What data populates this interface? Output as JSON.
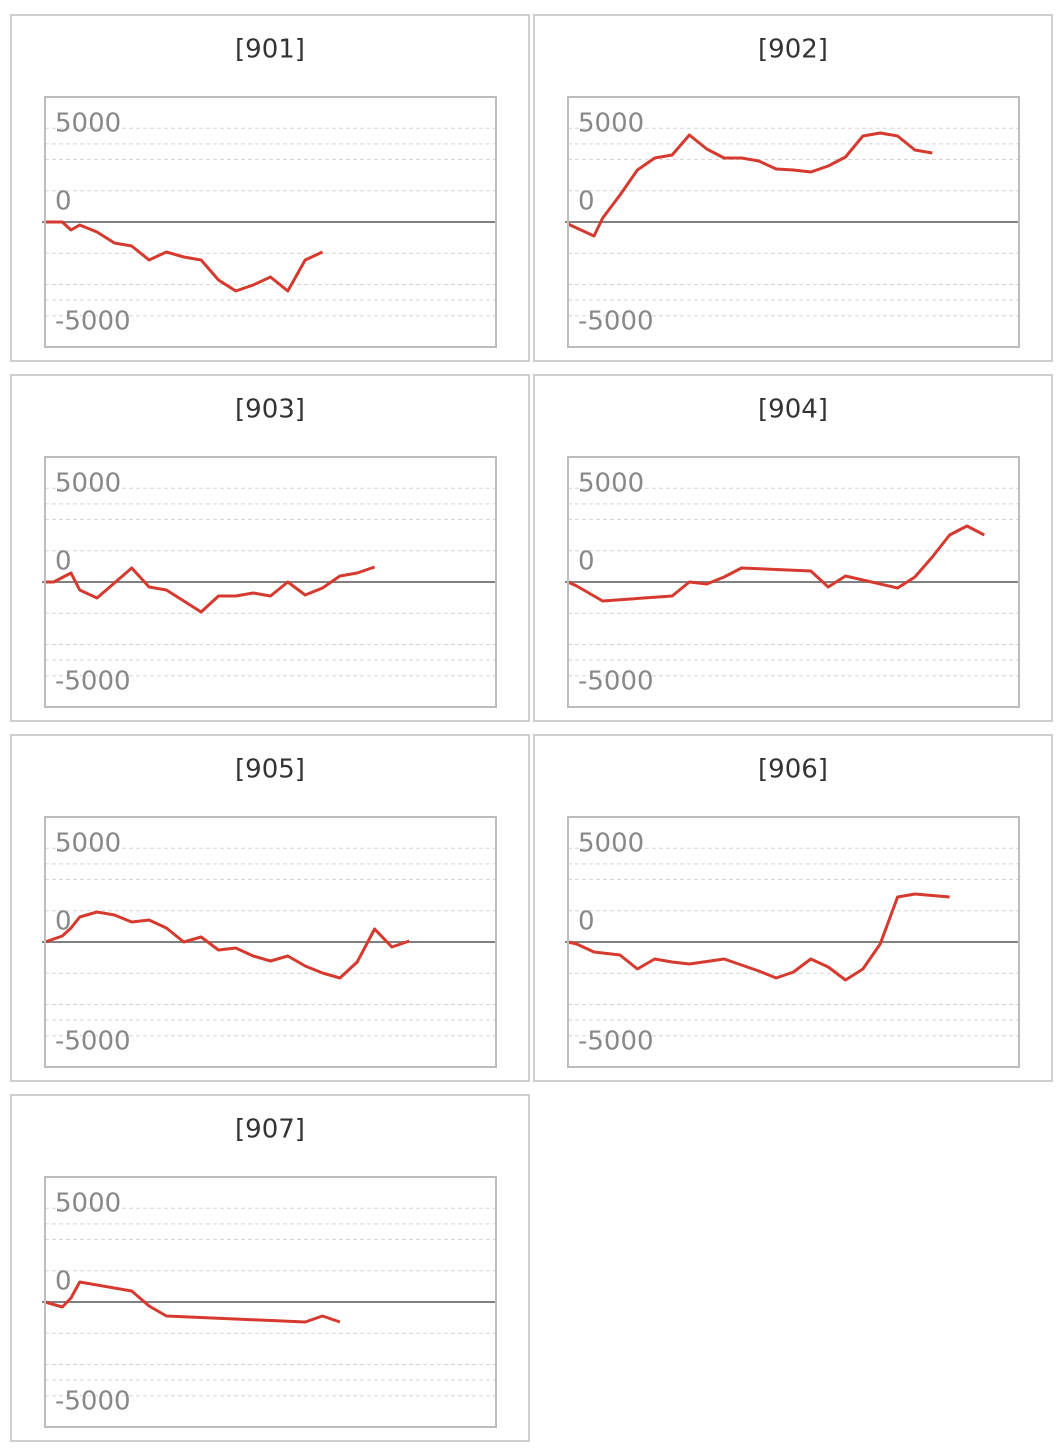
{
  "chart_data": [
    {
      "type": "line",
      "title": "[901]",
      "color": "#d63a2f",
      "ylim": [
        -8000,
        8000
      ],
      "yticks": [
        5000,
        0,
        -5000
      ],
      "xlim": [
        0,
        26
      ],
      "x": [
        0,
        1,
        1.5,
        2,
        3,
        4,
        5,
        6,
        7,
        8,
        9,
        10,
        11,
        12,
        13,
        14,
        15,
        16
      ],
      "values": [
        0,
        0,
        -512,
        -192,
        -640,
        -1344,
        -1536,
        -2432,
        -1920,
        -2240,
        -2432,
        -3712,
        -4416,
        -4032,
        -3520,
        -4416,
        -2432,
        -1920
      ]
    },
    {
      "type": "line",
      "title": "[902]",
      "color": "#d63a2f",
      "ylim": [
        -8000,
        8000
      ],
      "yticks": [
        5000,
        0,
        -5000
      ],
      "xlim": [
        0,
        26
      ],
      "x": [
        0,
        1.5,
        2,
        3,
        4,
        5,
        6,
        7,
        8,
        9,
        10,
        11,
        12,
        13,
        14,
        15,
        16,
        17,
        18,
        19,
        20,
        21
      ],
      "values": [
        -128,
        -896,
        256,
        1728,
        3328,
        4096,
        4288,
        5568,
        4672,
        4096,
        4096,
        3904,
        3392,
        3328,
        3200,
        3584,
        4160,
        5504,
        5696,
        5504,
        4608,
        4416
      ]
    },
    {
      "type": "line",
      "title": "[903]",
      "color": "#d63a2f",
      "ylim": [
        -8000,
        8000
      ],
      "yticks": [
        5000,
        0,
        -5000
      ],
      "xlim": [
        0,
        26
      ],
      "x": [
        0,
        0.5,
        1.5,
        2,
        3,
        4,
        5,
        6,
        7,
        8,
        9,
        10,
        11,
        12,
        13,
        14,
        15,
        16,
        17,
        18,
        19
      ],
      "values": [
        0,
        0,
        576,
        -512,
        -1024,
        -64,
        896,
        -320,
        -512,
        -1216,
        -1920,
        -896,
        -896,
        -704,
        -896,
        0,
        -832,
        -384,
        384,
        576,
        960
      ]
    },
    {
      "type": "line",
      "title": "[904]",
      "color": "#d63a2f",
      "ylim": [
        -8000,
        8000
      ],
      "yticks": [
        5000,
        0,
        -5000
      ],
      "xlim": [
        0,
        26
      ],
      "x": [
        0,
        0.5,
        1.5,
        2,
        6,
        7,
        8,
        9,
        10,
        14,
        15,
        16,
        19,
        20,
        21,
        22,
        23,
        24
      ],
      "values": [
        0,
        -256,
        -896,
        -1216,
        -896,
        0,
        -128,
        320,
        896,
        704,
        -320,
        384,
        -384,
        320,
        1600,
        3008,
        3584,
        3008
      ]
    },
    {
      "type": "line",
      "title": "[905]",
      "color": "#d63a2f",
      "ylim": [
        -8000,
        8000
      ],
      "yticks": [
        5000,
        0,
        -5000
      ],
      "xlim": [
        0,
        26
      ],
      "x": [
        0,
        1,
        1.5,
        2,
        3,
        4,
        5,
        6,
        7,
        8,
        9,
        10,
        11,
        12,
        13,
        14,
        15,
        16,
        17,
        18,
        19,
        20,
        21
      ],
      "values": [
        0,
        384,
        896,
        1600,
        1920,
        1728,
        1280,
        1408,
        896,
        0,
        320,
        -512,
        -384,
        -896,
        -1216,
        -896,
        -1536,
        -1984,
        -2304,
        -1280,
        832,
        -320,
        64
      ]
    },
    {
      "type": "line",
      "title": "[906]",
      "color": "#d63a2f",
      "ylim": [
        -8000,
        8000
      ],
      "yticks": [
        5000,
        0,
        -5000
      ],
      "xlim": [
        0,
        26
      ],
      "x": [
        0,
        0.5,
        1.5,
        3,
        4,
        5,
        6,
        7,
        9,
        10,
        11,
        12,
        13,
        14,
        15,
        16,
        17,
        18,
        19,
        20,
        22
      ],
      "values": [
        0,
        -128,
        -640,
        -832,
        -1728,
        -1088,
        -1280,
        -1408,
        -1088,
        -1472,
        -1856,
        -2304,
        -1920,
        -1088,
        -1600,
        -2432,
        -1728,
        -128,
        2880,
        3072,
        2880
      ]
    },
    {
      "type": "line",
      "title": "[907]",
      "color": "#d63a2f",
      "ylim": [
        -8000,
        8000
      ],
      "yticks": [
        5000,
        0,
        -5000
      ],
      "xlim": [
        0,
        26
      ],
      "x": [
        0,
        1,
        1.5,
        2,
        5,
        6,
        7,
        15,
        16,
        17
      ],
      "values": [
        0,
        -320,
        256,
        1280,
        704,
        -256,
        -896,
        -1280,
        -896,
        -1280
      ]
    }
  ]
}
